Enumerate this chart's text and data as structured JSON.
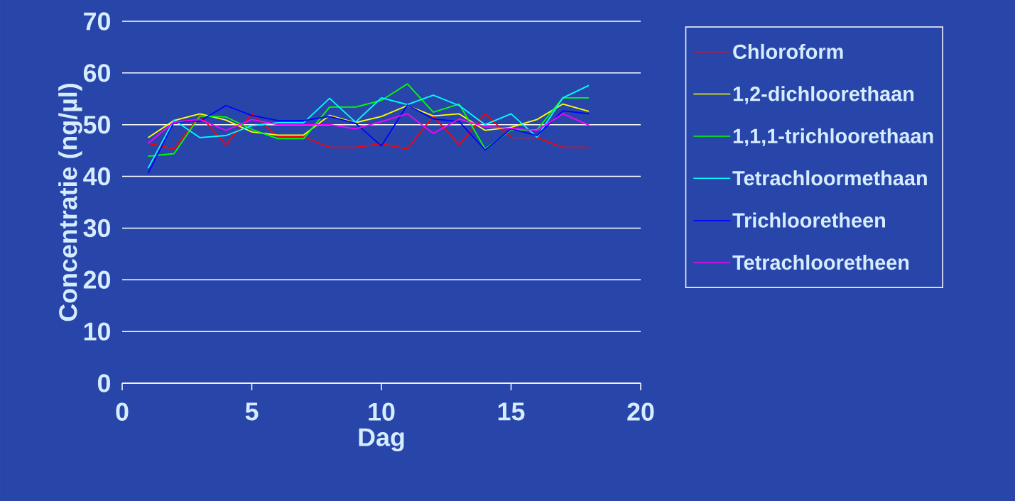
{
  "chart_data": {
    "type": "line",
    "xlabel": "Dag",
    "ylabel": "Concentratie (ng/µl)",
    "x": [
      1,
      2,
      3,
      4,
      5,
      6,
      7,
      8,
      9,
      10,
      11,
      12,
      13,
      14,
      15,
      16,
      17,
      18
    ],
    "series": [
      {
        "name": "Chloroform",
        "color": "#ff0000",
        "values": [
          46.4,
          45.3,
          51.8,
          46.1,
          52.1,
          47.7,
          47.7,
          45.6,
          45.6,
          46.3,
          45.3,
          51.7,
          46.1,
          52.1,
          47.5,
          47.5,
          45.6,
          45.6
        ]
      },
      {
        "name": "1,2-dichloorethaan",
        "color": "#ffff00",
        "values": [
          47.5,
          50.8,
          52.1,
          50.9,
          48.6,
          48.0,
          48.0,
          51.8,
          50.4,
          51.6,
          53.7,
          51.7,
          52.1,
          48.9,
          49.5,
          51.0,
          54.0,
          52.6
        ]
      },
      {
        "name": "1,1,1-trichloorethaan",
        "color": "#00ff00",
        "values": [
          43.9,
          44.4,
          51.7,
          51.5,
          49.1,
          47.3,
          47.3,
          53.4,
          53.4,
          54.7,
          57.9,
          52.4,
          54.0,
          45.3,
          49.0,
          49.0,
          55.2,
          55.2
        ]
      },
      {
        "name": "Tetrachloormethaan",
        "color": "#00ffff",
        "values": [
          41.6,
          50.9,
          47.5,
          47.9,
          49.8,
          50.4,
          50.4,
          55.1,
          50.5,
          55.2,
          53.9,
          55.7,
          53.7,
          50.0,
          52.1,
          47.6,
          55.2,
          57.6
        ]
      },
      {
        "name": "Trichlooretheen",
        "color": "#0000ff",
        "values": [
          40.6,
          50.5,
          50.7,
          53.7,
          51.8,
          50.8,
          50.8,
          51.6,
          50.3,
          45.9,
          53.8,
          51.1,
          50.6,
          45.1,
          49.2,
          47.9,
          52.7,
          52.1
        ]
      },
      {
        "name": "Tetrachlooretheen",
        "color": "#ff00ff",
        "values": [
          46.4,
          50.5,
          51.0,
          48.9,
          51.0,
          50.0,
          50.0,
          50.0,
          49.2,
          50.6,
          52.1,
          48.3,
          51.1,
          49.6,
          49.3,
          48.9,
          52.1,
          49.9
        ]
      }
    ],
    "xlim": [
      0,
      20
    ],
    "xticks": [
      0,
      5,
      10,
      15,
      20
    ],
    "ylim": [
      0,
      70
    ],
    "yticks": [
      0,
      10,
      20,
      30,
      40,
      50,
      60,
      70
    ],
    "grid": "y",
    "legend": "right",
    "marker": "none",
    "line_style": "solid"
  }
}
